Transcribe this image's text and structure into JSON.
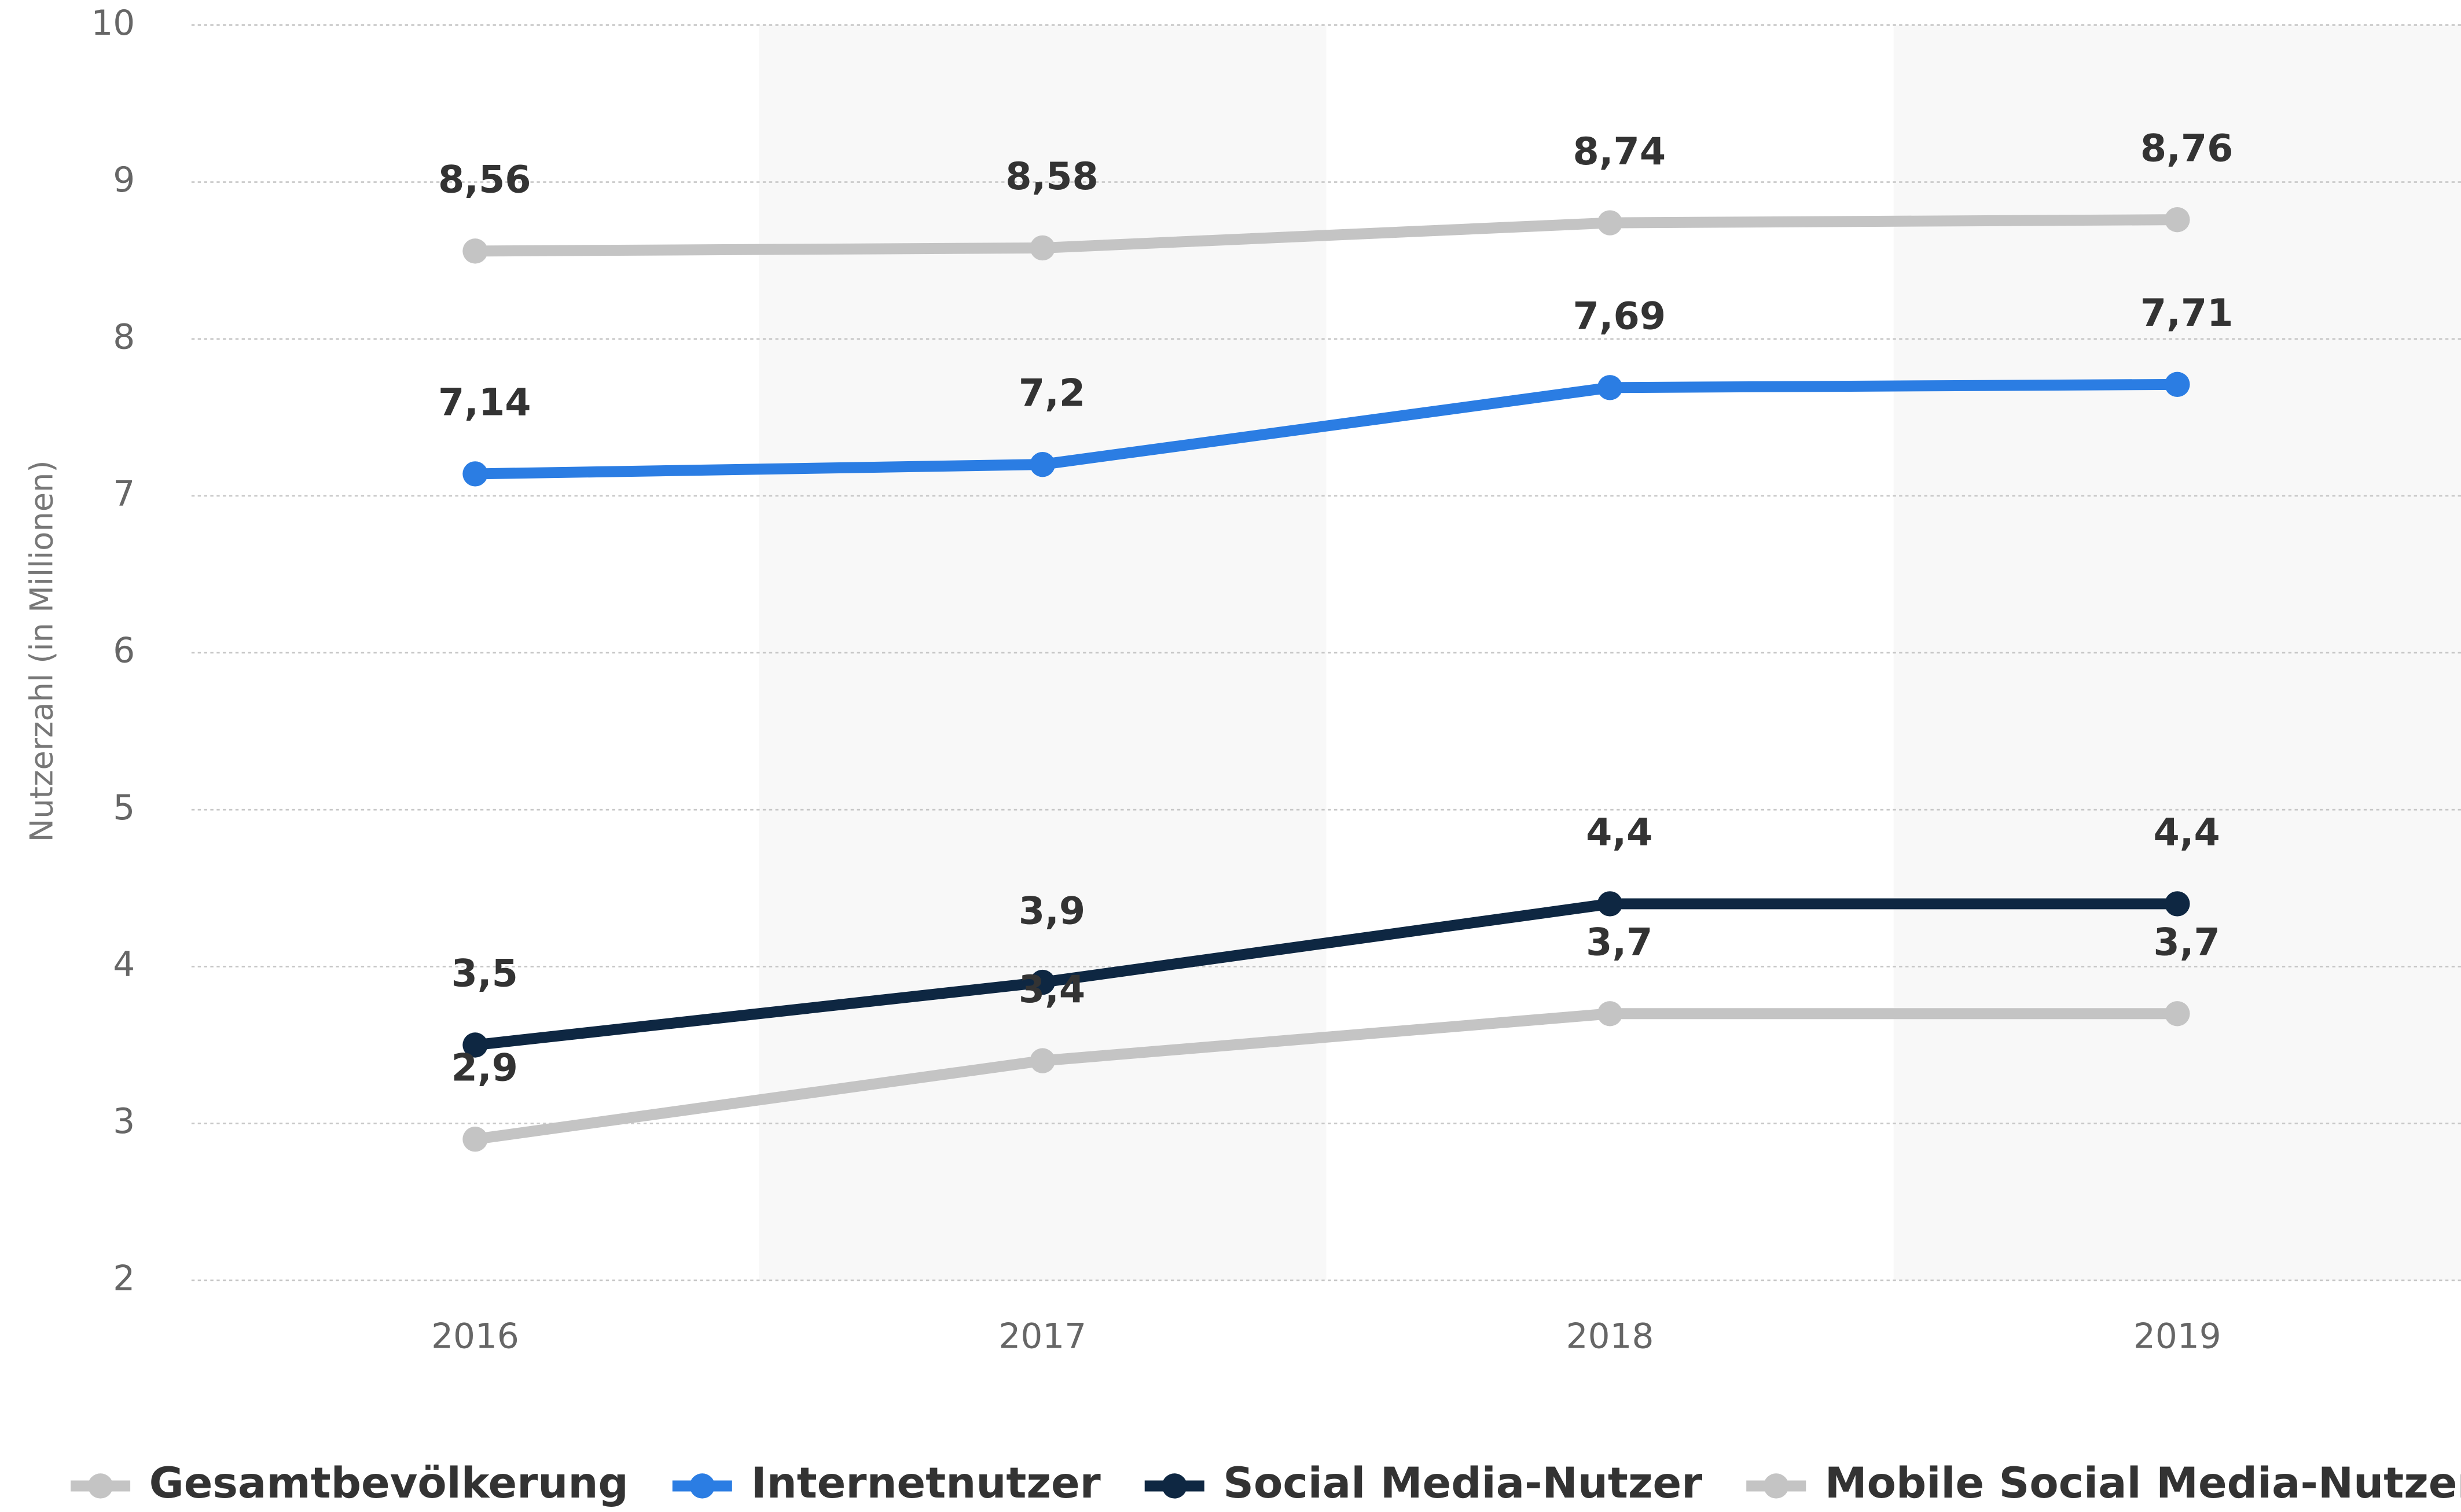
{
  "chart_data": {
    "type": "line",
    "y_label": "Nutzerzahl (in Millionen)",
    "categories": [
      "2016",
      "2017",
      "2018",
      "2019"
    ],
    "series": [
      {
        "name": "Gesamtbevölkerung",
        "color": "#c4c4c4",
        "values": [
          8.56,
          8.58,
          8.74,
          8.76
        ],
        "value_labels": [
          "8,56",
          "8,58",
          "8,74",
          "8,76"
        ]
      },
      {
        "name": "Internetnutzer",
        "color": "#2b7de3",
        "values": [
          7.14,
          7.2,
          7.69,
          7.71
        ],
        "value_labels": [
          "7,14",
          "7,2",
          "7,69",
          "7,71"
        ]
      },
      {
        "name": "Social Media-Nutzer",
        "color": "#0e2742",
        "values": [
          3.5,
          3.9,
          4.4,
          4.4
        ],
        "value_labels": [
          "3,5",
          "3,9",
          "4,4",
          "4,4"
        ]
      },
      {
        "name": "Mobile Social Media-Nutzer",
        "color": "#c4c4c4",
        "values": [
          2.9,
          3.4,
          3.7,
          3.7
        ],
        "value_labels": [
          "2,9",
          "3,4",
          "3,7",
          "3,7"
        ]
      }
    ],
    "ylim": [
      2,
      10
    ],
    "yticks": [
      2,
      3,
      4,
      5,
      6,
      7,
      8,
      9,
      10
    ],
    "grid": true
  }
}
